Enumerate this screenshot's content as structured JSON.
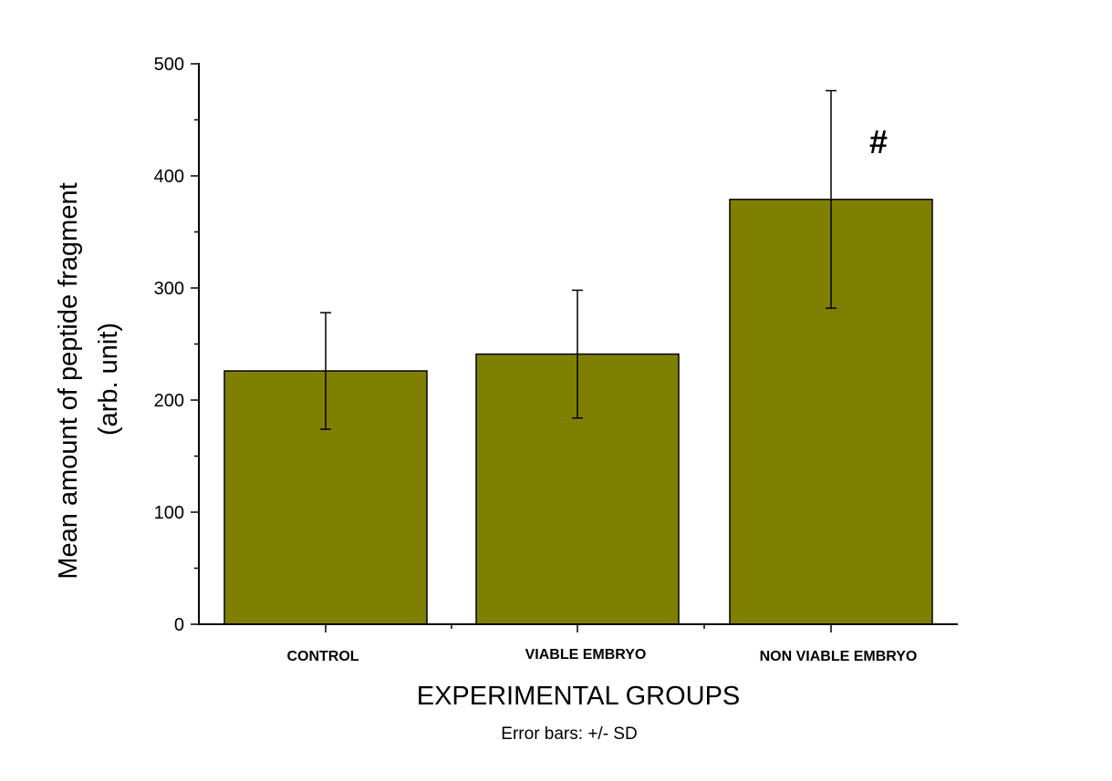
{
  "chart_data": {
    "type": "bar",
    "categories": [
      "CONTROL",
      "VIABLE EMBRYO",
      "NON VIABLE EMBRYO"
    ],
    "values": [
      226,
      241,
      379
    ],
    "error_sd": [
      52,
      57,
      97
    ],
    "ylabel_line1": "Mean amount of peptide fragment",
    "ylabel_line2": "(arb. unit)",
    "xlabel": "EXPERIMENTAL GROUPS",
    "note": "Error bars: +/- SD",
    "ylim": [
      0,
      500
    ],
    "yticks": [
      0,
      100,
      200,
      300,
      400,
      500
    ],
    "grid": false,
    "bar_color": "#808000",
    "annotations": [
      {
        "text": "#",
        "category": "NON VIABLE EMBRYO"
      }
    ]
  }
}
